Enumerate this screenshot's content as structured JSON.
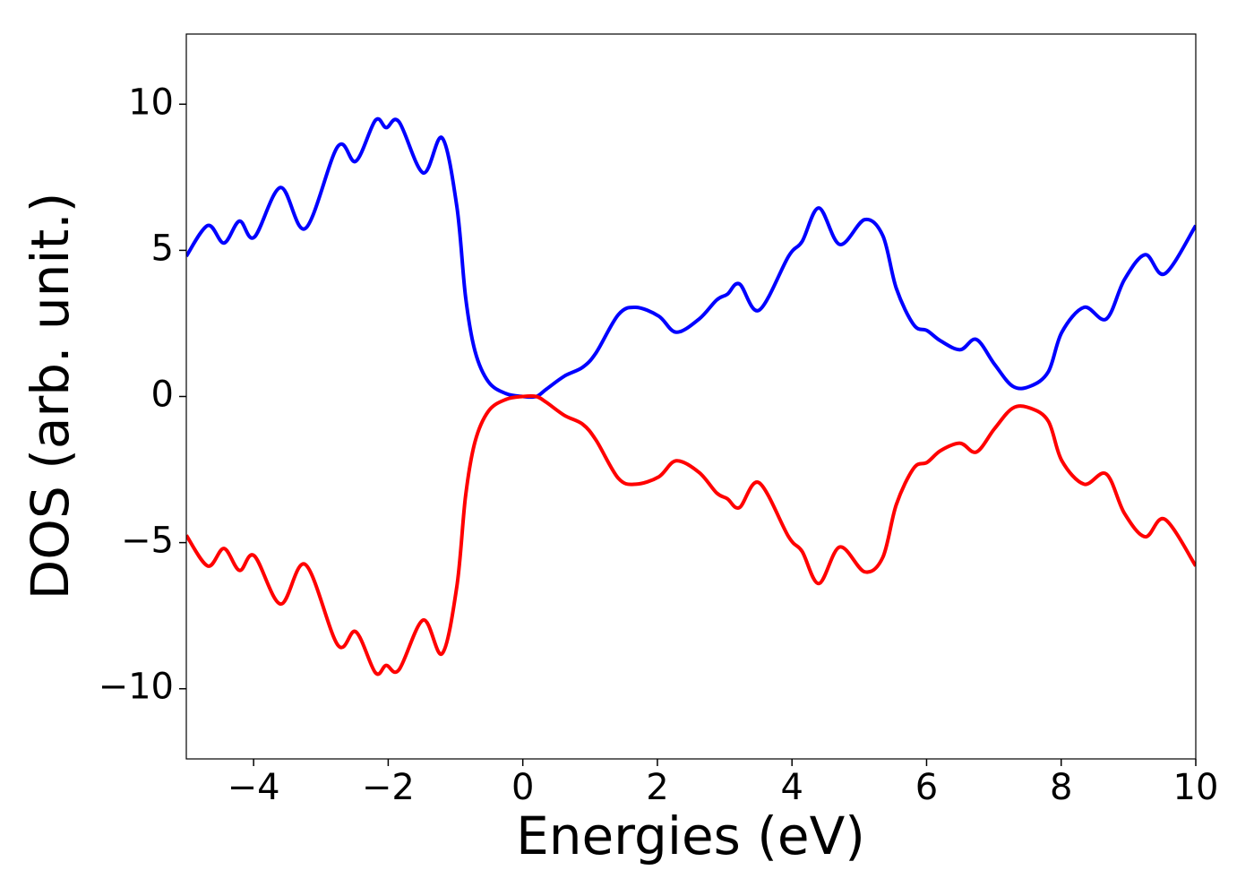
{
  "chart_data": {
    "type": "line",
    "xlabel": "Energies (eV)",
    "ylabel": "DOS (arb. unit.)",
    "x": [
      -5,
      -4.68,
      -4.44,
      -4.21,
      -3.99,
      -3.6,
      -3.23,
      -2.75,
      -2.48,
      -2.19,
      -2.03,
      -1.84,
      -1.48,
      -1.2,
      -0.98,
      -0.85,
      -0.71,
      -0.51,
      -0.25,
      0,
      0.2,
      0.35,
      0.62,
      0.89,
      1.09,
      1.42,
      1.68,
      2.02,
      2.28,
      2.62,
      2.88,
      3.04,
      3.22,
      3.51,
      3.95,
      4.15,
      4.4,
      4.71,
      5.08,
      5.35,
      5.55,
      5.81,
      6.01,
      6.21,
      6.5,
      6.74,
      7.01,
      7.28,
      7.54,
      7.81,
      8.01,
      8.34,
      8.67,
      8.94,
      9.25,
      9.54,
      10
    ],
    "series": [
      {
        "color": "#0000ff",
        "values": [
          4.8,
          5.85,
          5.25,
          6.0,
          5.45,
          7.15,
          5.75,
          8.55,
          8.05,
          9.45,
          9.2,
          9.4,
          7.65,
          8.85,
          6.5,
          3.4,
          1.55,
          0.5,
          0.1,
          0,
          0,
          0.25,
          0.7,
          1.0,
          1.5,
          2.8,
          3.05,
          2.75,
          2.2,
          2.65,
          3.3,
          3.5,
          3.85,
          2.95,
          4.8,
          5.3,
          6.45,
          5.2,
          6.05,
          5.5,
          3.7,
          2.45,
          2.25,
          1.9,
          1.6,
          1.95,
          1.1,
          0.35,
          0.35,
          0.85,
          2.2,
          3.05,
          2.65,
          4.0,
          4.85,
          4.2,
          5.85
        ]
      },
      {
        "color": "#ff0000",
        "values": [
          -4.75,
          -5.8,
          -5.2,
          -5.95,
          -5.45,
          -7.1,
          -5.75,
          -8.5,
          -8.05,
          -9.45,
          -9.2,
          -9.35,
          -7.65,
          -8.8,
          -6.5,
          -3.4,
          -1.55,
          -0.5,
          -0.1,
          0,
          0,
          -0.2,
          -0.65,
          -0.95,
          -1.5,
          -2.8,
          -3.0,
          -2.75,
          -2.2,
          -2.6,
          -3.3,
          -3.5,
          -3.8,
          -2.95,
          -4.8,
          -5.3,
          -6.4,
          -5.15,
          -6.0,
          -5.5,
          -3.7,
          -2.45,
          -2.25,
          -1.85,
          -1.6,
          -1.9,
          -1.1,
          -0.4,
          -0.4,
          -0.85,
          -2.2,
          -3.0,
          -2.65,
          -4.0,
          -4.8,
          -4.2,
          -5.8
        ]
      }
    ],
    "xlim": [
      -5,
      10
    ],
    "xticks": [
      {
        "value": -4,
        "label": "−4"
      },
      {
        "value": -2,
        "label": "−2"
      },
      0,
      2,
      4,
      6,
      8,
      10
    ],
    "ylim": [
      -12.4,
      12.4
    ],
    "yticks": [
      {
        "value": -10,
        "label": "−10"
      },
      {
        "value": -5,
        "label": "−5"
      },
      0,
      5,
      10
    ]
  }
}
